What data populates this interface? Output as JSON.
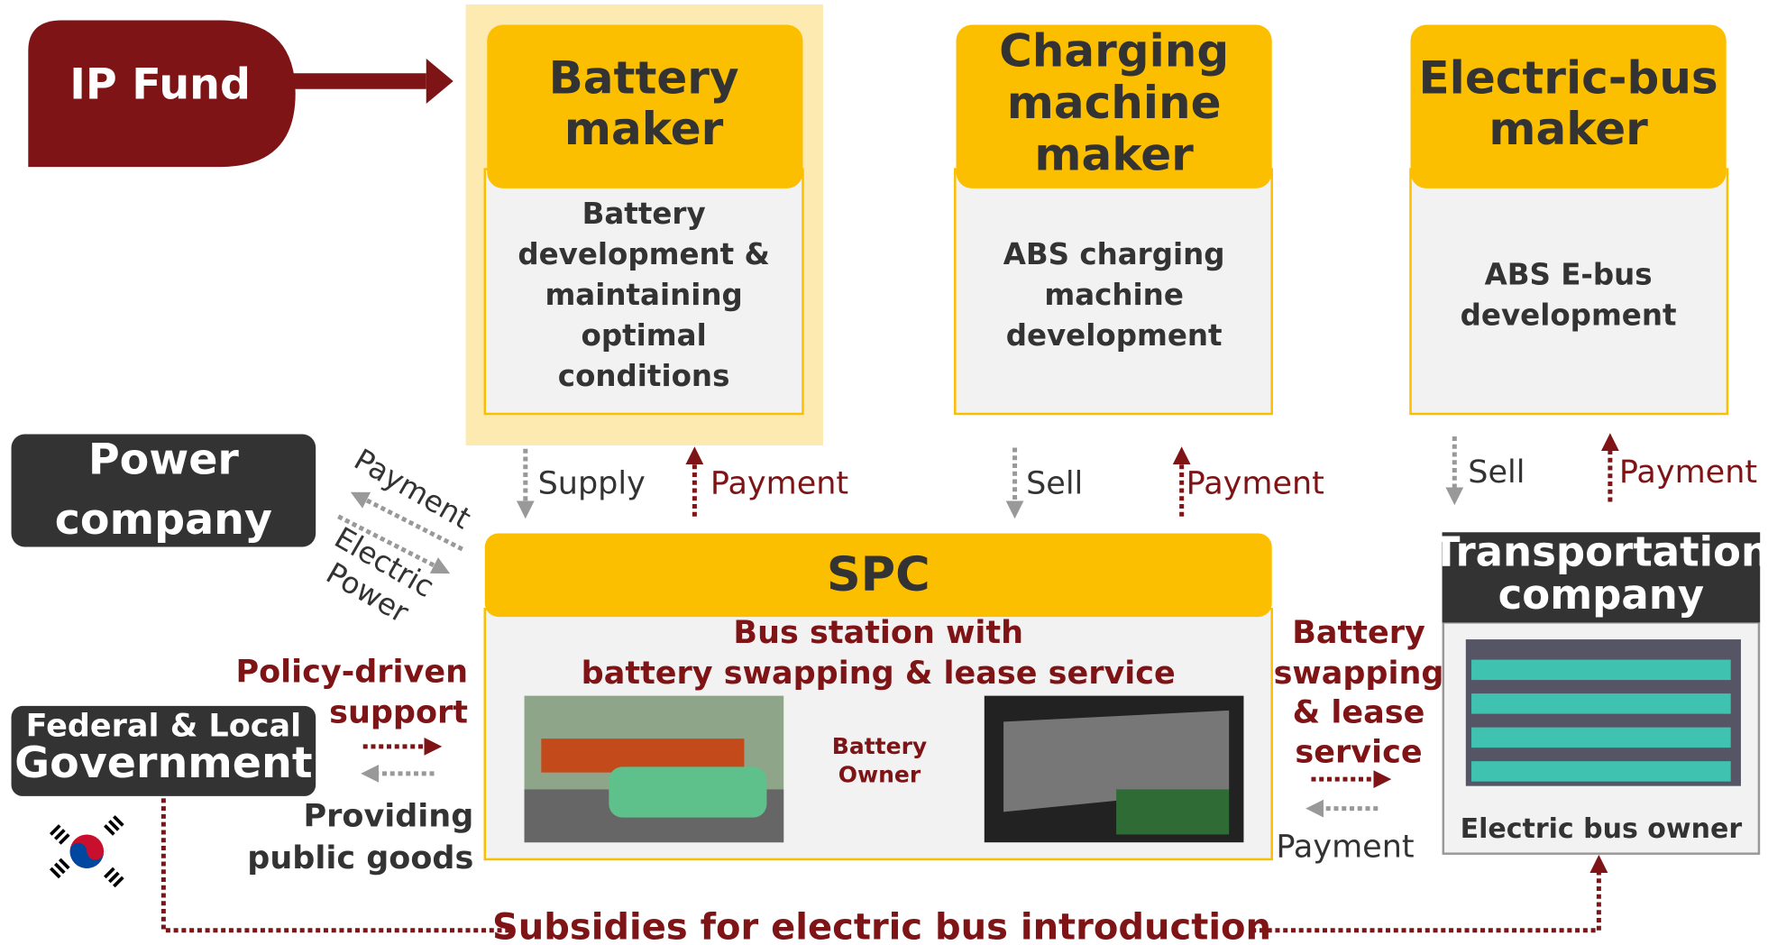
{
  "ip_fund": "IP Fund",
  "makers": [
    {
      "title": [
        "Battery",
        "maker"
      ],
      "description": [
        "Battery",
        "development &",
        "maintaining",
        "optimal",
        "conditions"
      ],
      "down_label": "Supply",
      "up_label": "Payment"
    },
    {
      "title": [
        "Charging",
        "machine",
        "maker"
      ],
      "description": [
        "ABS charging",
        "machine",
        "development"
      ],
      "down_label": "Sell",
      "up_label": "Payment"
    },
    {
      "title": [
        "Electric-bus",
        "maker"
      ],
      "description": [
        "ABS E-bus",
        "development"
      ],
      "down_label": "Sell",
      "up_label": "Payment"
    }
  ],
  "power_company": {
    "title": [
      "Power",
      "company"
    ],
    "payment_label": "Payment",
    "power_label": [
      "Electric",
      "Power"
    ]
  },
  "spc": {
    "title": "SPC",
    "subtitle": [
      "Bus station with",
      "battery swapping & lease service"
    ],
    "owner": [
      "Battery",
      "Owner"
    ]
  },
  "government": {
    "title": [
      "Federal & Local",
      "Government"
    ],
    "support_label": [
      "Policy-driven",
      "support"
    ],
    "goods_label": [
      "Providing",
      "public goods"
    ]
  },
  "transport": {
    "title": [
      "Transportation",
      "company"
    ],
    "owner": "Electric bus owner",
    "service_label": [
      "Battery",
      "swapping",
      "& lease",
      "service"
    ],
    "payment_label": "Payment"
  },
  "subsidies": "Subsidies for electric bus introduction"
}
